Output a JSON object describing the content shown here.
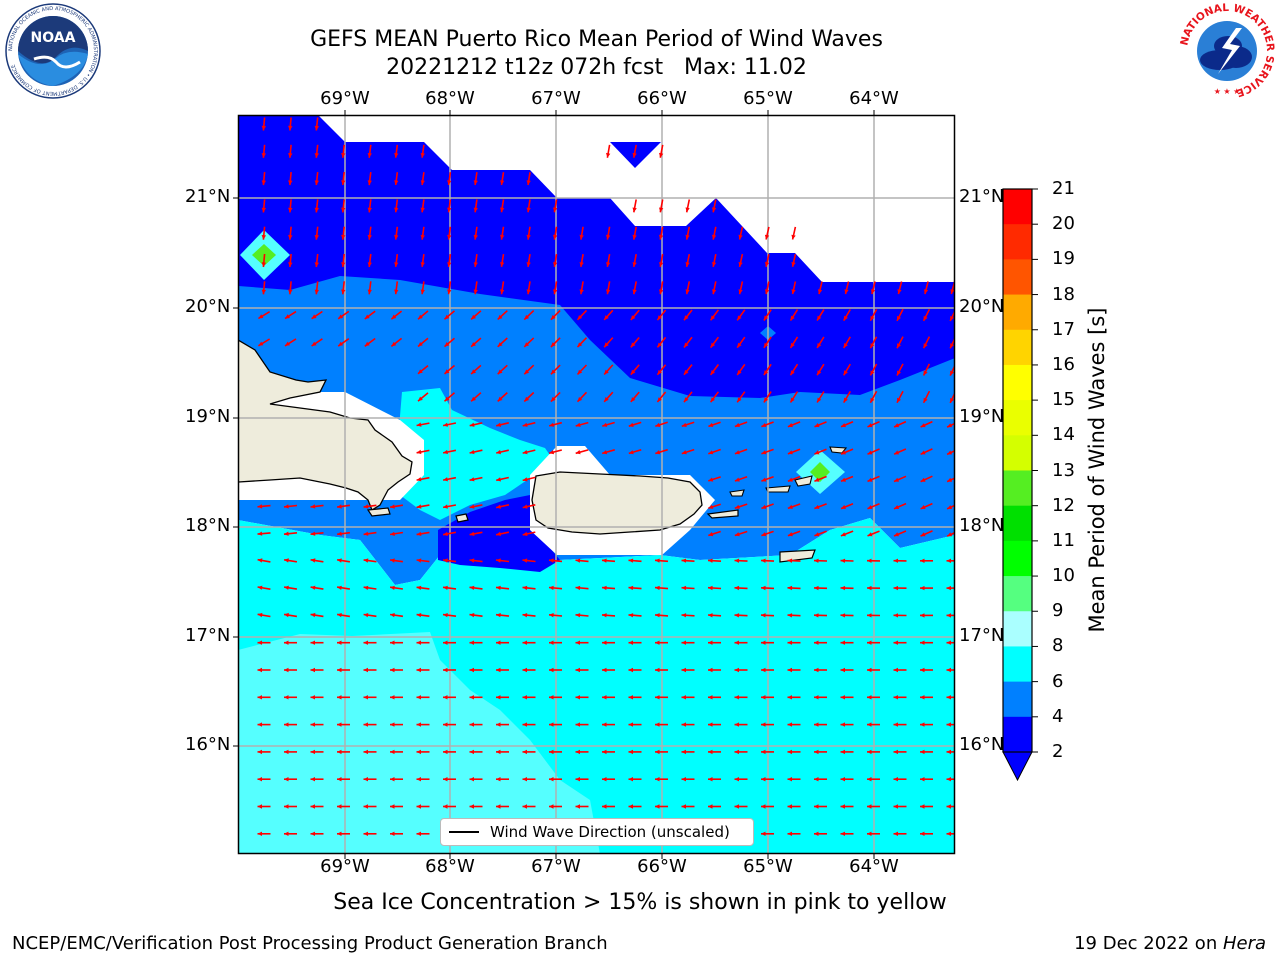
{
  "title": {
    "line1": "GEFS MEAN Puerto Rico Mean Period of Wind Waves",
    "line2": "20221212 t12z 072h fcst   Max: 11.02"
  },
  "map": {
    "lon_labels": [
      "69°W",
      "68°W",
      "67°W",
      "66°W",
      "65°W",
      "64°W"
    ],
    "lat_labels": [
      "21°N",
      "20°N",
      "19°N",
      "18°N",
      "17°N",
      "16°N"
    ],
    "legend_label": "Wind Wave Direction (unscaled)",
    "ocean_classes": [
      "2-4",
      "4-6",
      "6-8",
      "8-9",
      "10-11"
    ],
    "land_color": "#eeecdc",
    "arrow_color": "#ff0000"
  },
  "colorbar": {
    "title": "Mean Period of Wind Waves [s]",
    "ticks": [
      "21",
      "20",
      "19",
      "18",
      "17",
      "16",
      "15",
      "14",
      "13",
      "12",
      "11",
      "10",
      "9",
      "8",
      "6",
      "4",
      "2"
    ],
    "colors": [
      "#ff0000",
      "#ff2a00",
      "#ff5500",
      "#ff8000",
      "#ffaa00",
      "#ffd400",
      "#ffff00",
      "#eaff00",
      "#d4ff00",
      "#aaff00",
      "#55ee22",
      "#00e000",
      "#00ff00",
      "#55ff80",
      "#aaffff",
      "#55ffff",
      "#00ffff",
      "#0080ff",
      "#0000ff"
    ]
  },
  "subtitle": "Sea Ice Concentration > 15% is shown in pink to yellow",
  "footer": {
    "left": "NCEP/EMC/Verification Post Processing Product Generation Branch",
    "right_prefix": "19 Dec 2022 on ",
    "right_host": "Hera"
  },
  "logos": {
    "noaa_text": "NOAA",
    "noaa_ring": "NATIONAL OCEANIC AND ATMOSPHERIC ADMINISTRATION • U.S. DEPARTMENT OF COMMERCE",
    "nws_ring": "NATIONAL WEATHER SERVICE"
  }
}
